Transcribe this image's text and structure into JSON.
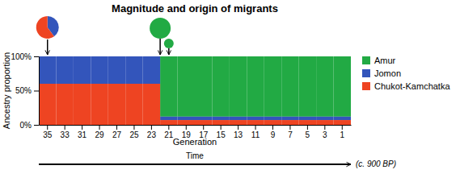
{
  "chart_data": {
    "type": "bar",
    "title": "Magnitude and origin of migrants",
    "xlabel": "Generation",
    "ylabel": "Ancestry proportion",
    "categories": [
      "35",
      "33",
      "31",
      "29",
      "27",
      "25",
      "23",
      "21",
      "19",
      "17",
      "15",
      "13",
      "11",
      "9",
      "7",
      "5",
      "3",
      "1"
    ],
    "series": [
      {
        "name": "Amur",
        "color": "#22aa44",
        "values": [
          0,
          0,
          0,
          0,
          0,
          0,
          0,
          88,
          88,
          88,
          88,
          88,
          88,
          88,
          88,
          88,
          88,
          88
        ]
      },
      {
        "name": "Jomon",
        "color": "#3355bb",
        "values": [
          40,
          40,
          40,
          40,
          40,
          40,
          40,
          5,
          5,
          5,
          5,
          5,
          5,
          5,
          5,
          5,
          5,
          5
        ]
      },
      {
        "name": "Chukot-Kamchatka",
        "color": "#ee4422",
        "values": [
          60,
          60,
          60,
          60,
          60,
          60,
          60,
          7,
          7,
          7,
          7,
          7,
          7,
          7,
          7,
          7,
          7,
          7
        ]
      }
    ],
    "stacked": true,
    "ylim": [
      0,
      100
    ],
    "yticks": [
      {
        "value": 0,
        "label": "0%"
      },
      {
        "value": 50,
        "label": "50%"
      },
      {
        "value": 100,
        "label": "100%"
      }
    ],
    "grid": false,
    "legend": "right",
    "annotations": [
      "Time",
      "(c. 900 BP)"
    ]
  }
}
